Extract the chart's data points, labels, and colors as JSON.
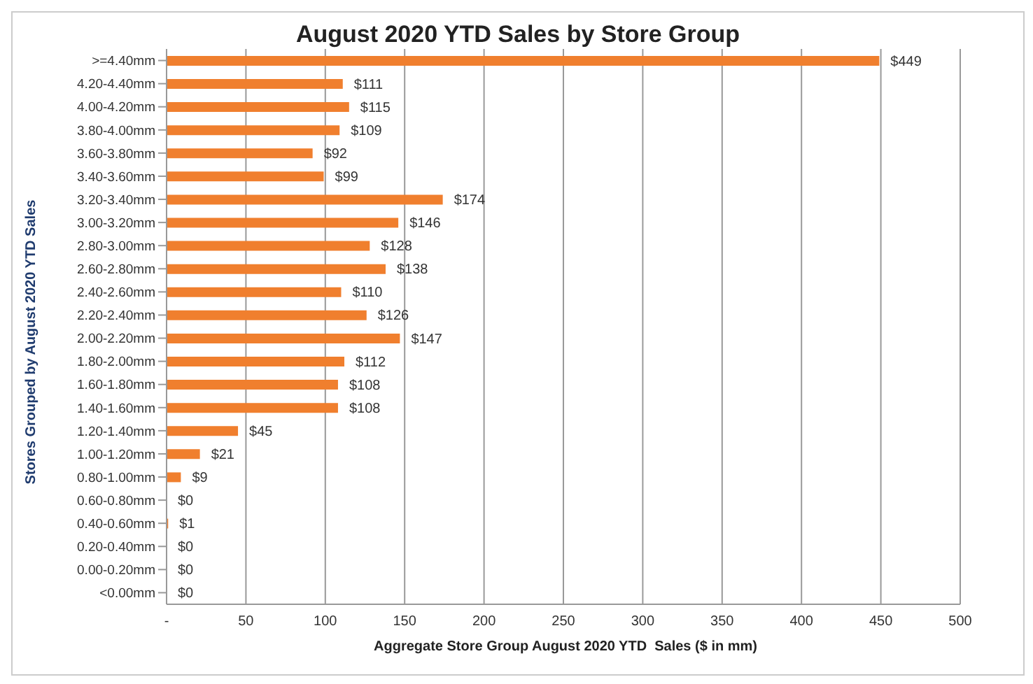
{
  "chart_data": {
    "type": "bar",
    "orientation": "horizontal",
    "title": "August 2020 YTD Sales by Store Group",
    "xlabel": "Aggregate Store Group August 2020 YTD  Sales ($ in mm)",
    "ylabel": "Stores Grouped by August 2020 YTD Sales",
    "categories": [
      ">=4.40mm",
      "4.20-4.40mm",
      "4.00-4.20mm",
      "3.80-4.00mm",
      "3.60-3.80mm",
      "3.40-3.60mm",
      "3.20-3.40mm",
      "3.00-3.20mm",
      "2.80-3.00mm",
      "2.60-2.80mm",
      "2.40-2.60mm",
      "2.20-2.40mm",
      "2.00-2.20mm",
      "1.80-2.00mm",
      "1.60-1.80mm",
      "1.40-1.60mm",
      "1.20-1.40mm",
      "1.00-1.20mm",
      "0.80-1.00mm",
      "0.60-0.80mm",
      "0.40-0.60mm",
      "0.20-0.40mm",
      "0.00-0.20mm",
      "<0.00mm"
    ],
    "values": [
      449,
      111,
      115,
      109,
      92,
      99,
      174,
      146,
      128,
      138,
      110,
      126,
      147,
      112,
      108,
      108,
      45,
      21,
      9,
      0,
      1,
      0,
      0,
      0
    ],
    "value_labels": [
      "$449",
      "$111",
      "$115",
      "$109",
      "$92",
      "$99",
      "$174",
      "$146",
      "$128",
      "$138",
      "$110",
      "$126",
      "$147",
      "$112",
      "$108",
      "$108",
      "$45",
      "$21",
      "$9",
      "$0",
      "$1",
      "$0",
      "$0",
      "$0"
    ],
    "color": "#f07f2e",
    "xlim": [
      0,
      500
    ],
    "xticks": [
      {
        "value": 0,
        "label": "-"
      },
      50,
      100,
      150,
      200,
      250,
      300,
      350,
      400,
      450,
      500
    ],
    "grid": "x"
  }
}
